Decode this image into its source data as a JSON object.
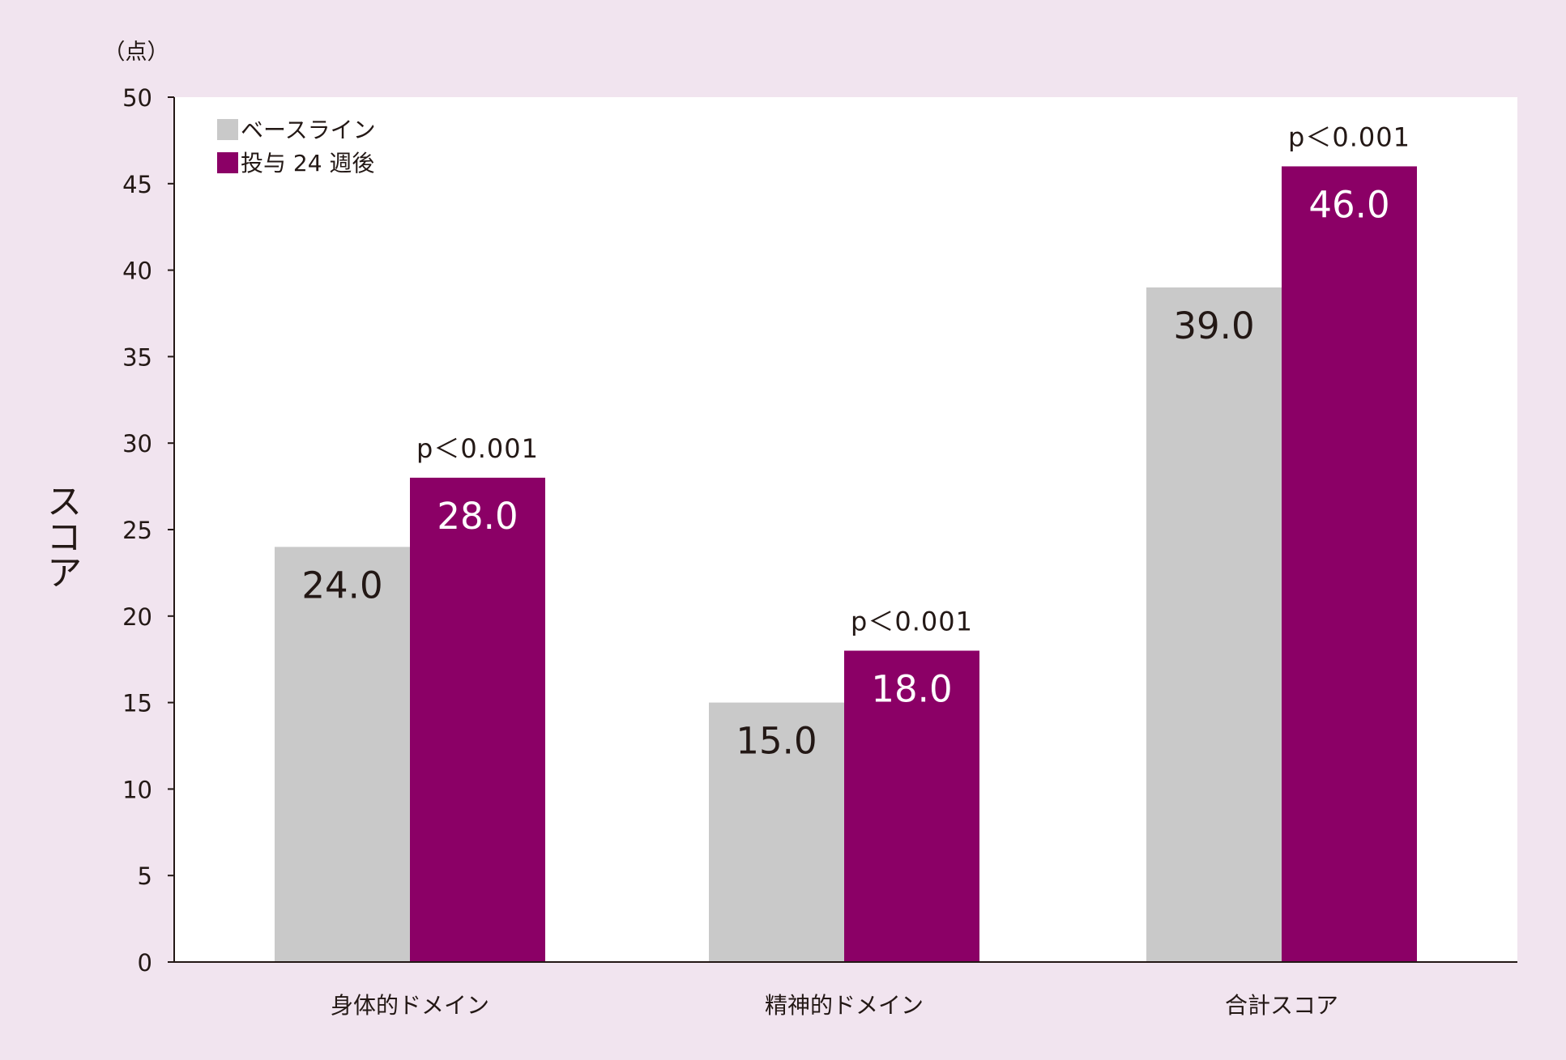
{
  "chart_data": {
    "type": "bar",
    "title": "",
    "xlabel": "",
    "ylabel": "スコア",
    "y_unit": "（点）",
    "ylim": [
      0,
      50
    ],
    "yticks": [
      0,
      5,
      10,
      15,
      20,
      25,
      30,
      35,
      40,
      45,
      50
    ],
    "categories": [
      "身体的ドメイン",
      "精神的ドメイン",
      "合計スコア"
    ],
    "series": [
      {
        "name": "ベースライン",
        "values": [
          24.0,
          15.0,
          39.0
        ],
        "labels": [
          "24.0",
          "15.0",
          "39.0"
        ],
        "color": "#c9c9c9",
        "label_color": "#231815"
      },
      {
        "name": "投与 24 週後",
        "values": [
          28.0,
          18.0,
          46.0
        ],
        "labels": [
          "28.0",
          "18.0",
          "46.0"
        ],
        "color": "#8b0066",
        "label_color": "#ffffff"
      }
    ],
    "annotations": [
      "p＜0.001",
      "p＜0.001",
      "p＜0.001"
    ],
    "legend_position": "top-left",
    "grid": false
  },
  "colors": {
    "background": "#f1e4ef",
    "plot_background": "#ffffff",
    "axis": "#231815"
  }
}
